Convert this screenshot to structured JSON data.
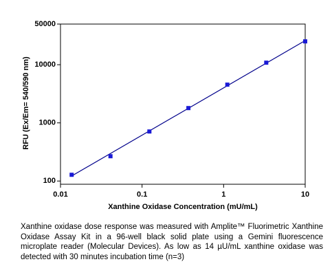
{
  "chart_data": {
    "type": "scatter",
    "xlabel": "Xanthine Oxidase Concentration (mU/mL)",
    "ylabel": "RFU (Ex/Em= 540/590 nm)",
    "x": [
      0.0137,
      0.041,
      0.123,
      0.37,
      1.11,
      3.33,
      10
    ],
    "series": [
      {
        "color": "#1a1ad6",
        "values": [
          128,
          267,
          711,
          1796,
          4540,
          10840,
          25200
        ]
      }
    ],
    "fit": {
      "x": [
        0.0137,
        10
      ],
      "y": [
        122,
        26000
      ],
      "color": "#00008b"
    },
    "xlim": [
      0.01,
      10
    ],
    "ylim": [
      88,
      50000
    ],
    "xticks": [
      0.01,
      0.1,
      1,
      10
    ],
    "yticks": [
      100,
      1000,
      10000,
      50000
    ],
    "log_x": true,
    "log_y": true,
    "grid": false
  },
  "caption": "Xanthine oxidase dose response was measured with Amplite™ Fluorimetric Xanthine Oxidase Assay Kit in a 96-well black solid plate using a Gemini fluorescence microplate reader (Molecular Devices). As low as 14 µU/mL xanthine oxidase was detected with 30 minutes incubation time (n=3)"
}
